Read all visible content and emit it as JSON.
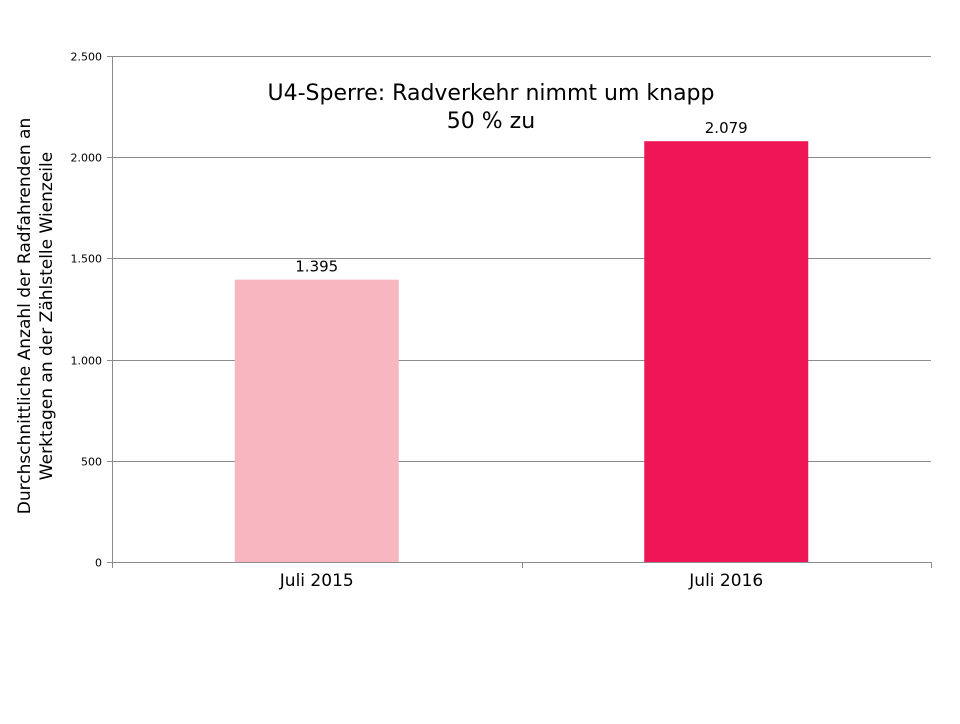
{
  "chart_data": {
    "type": "bar",
    "title_lines": [
      "U4-Sperre: Radverkehr nimmt um knapp",
      "50 % zu"
    ],
    "ylabel_lines": [
      "Durchschnittliche Anzahl der Radfahrenden an",
      "Werktagen an der Zählstelle Wienzeile"
    ],
    "xlabel": "",
    "categories": [
      "Juli 2015",
      "Juli 2016"
    ],
    "values": [
      1395,
      2079
    ],
    "value_labels": [
      "1.395",
      "2.079"
    ],
    "bar_colors": [
      "#f8b6c0",
      "#ee1656"
    ],
    "ylim": [
      0,
      2500
    ],
    "yticks": [
      0,
      500,
      1000,
      1500,
      2000,
      2500
    ],
    "ytick_labels": [
      "0",
      "500",
      "1.000",
      "1.500",
      "2.000",
      "2.500"
    ],
    "grid": true,
    "legend": "none"
  }
}
